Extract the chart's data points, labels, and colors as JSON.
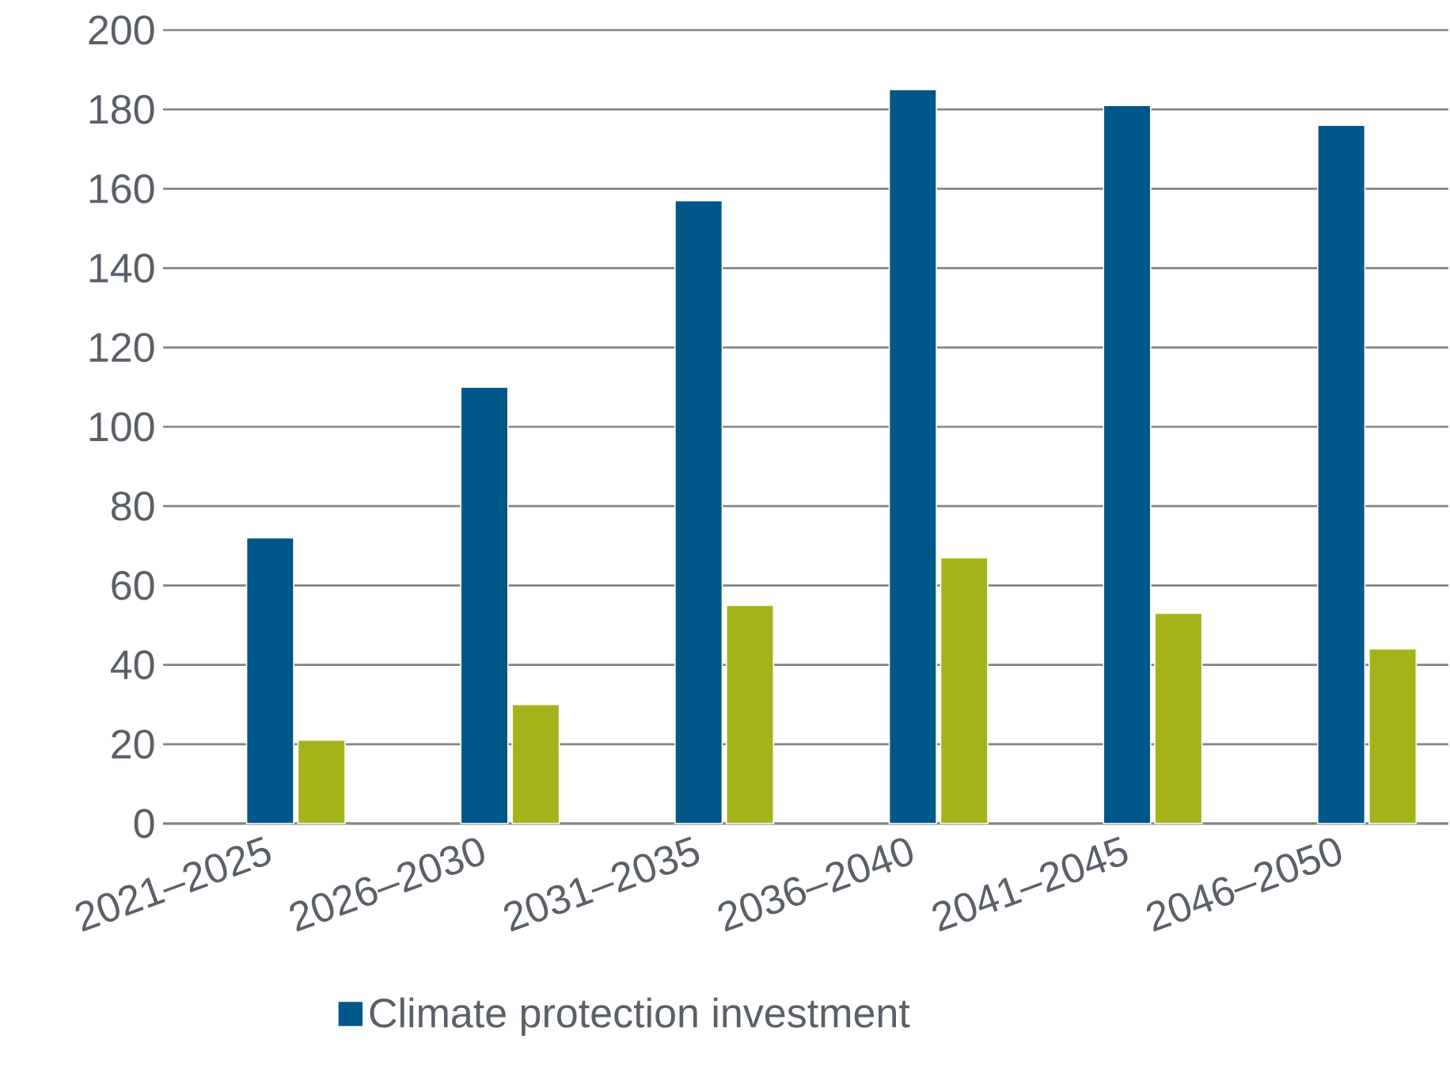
{
  "chart_data": {
    "type": "bar",
    "categories": [
      "2021–2025",
      "2026–2030",
      "2031–2035",
      "2036–2040",
      "2041–2045",
      "2046–2050"
    ],
    "series": [
      {
        "name": "Climate protection investment",
        "color": "#00578a",
        "values": [
          72,
          110,
          157,
          185,
          181,
          176
        ]
      },
      {
        "color": "#a5b31a",
        "values": [
          21,
          30,
          55,
          67,
          53,
          44
        ]
      }
    ],
    "ylim": [
      0,
      200
    ],
    "yticks": [
      0,
      20,
      40,
      60,
      80,
      100,
      120,
      140,
      160,
      180,
      200
    ],
    "grid": "y",
    "legend": "bottom"
  }
}
